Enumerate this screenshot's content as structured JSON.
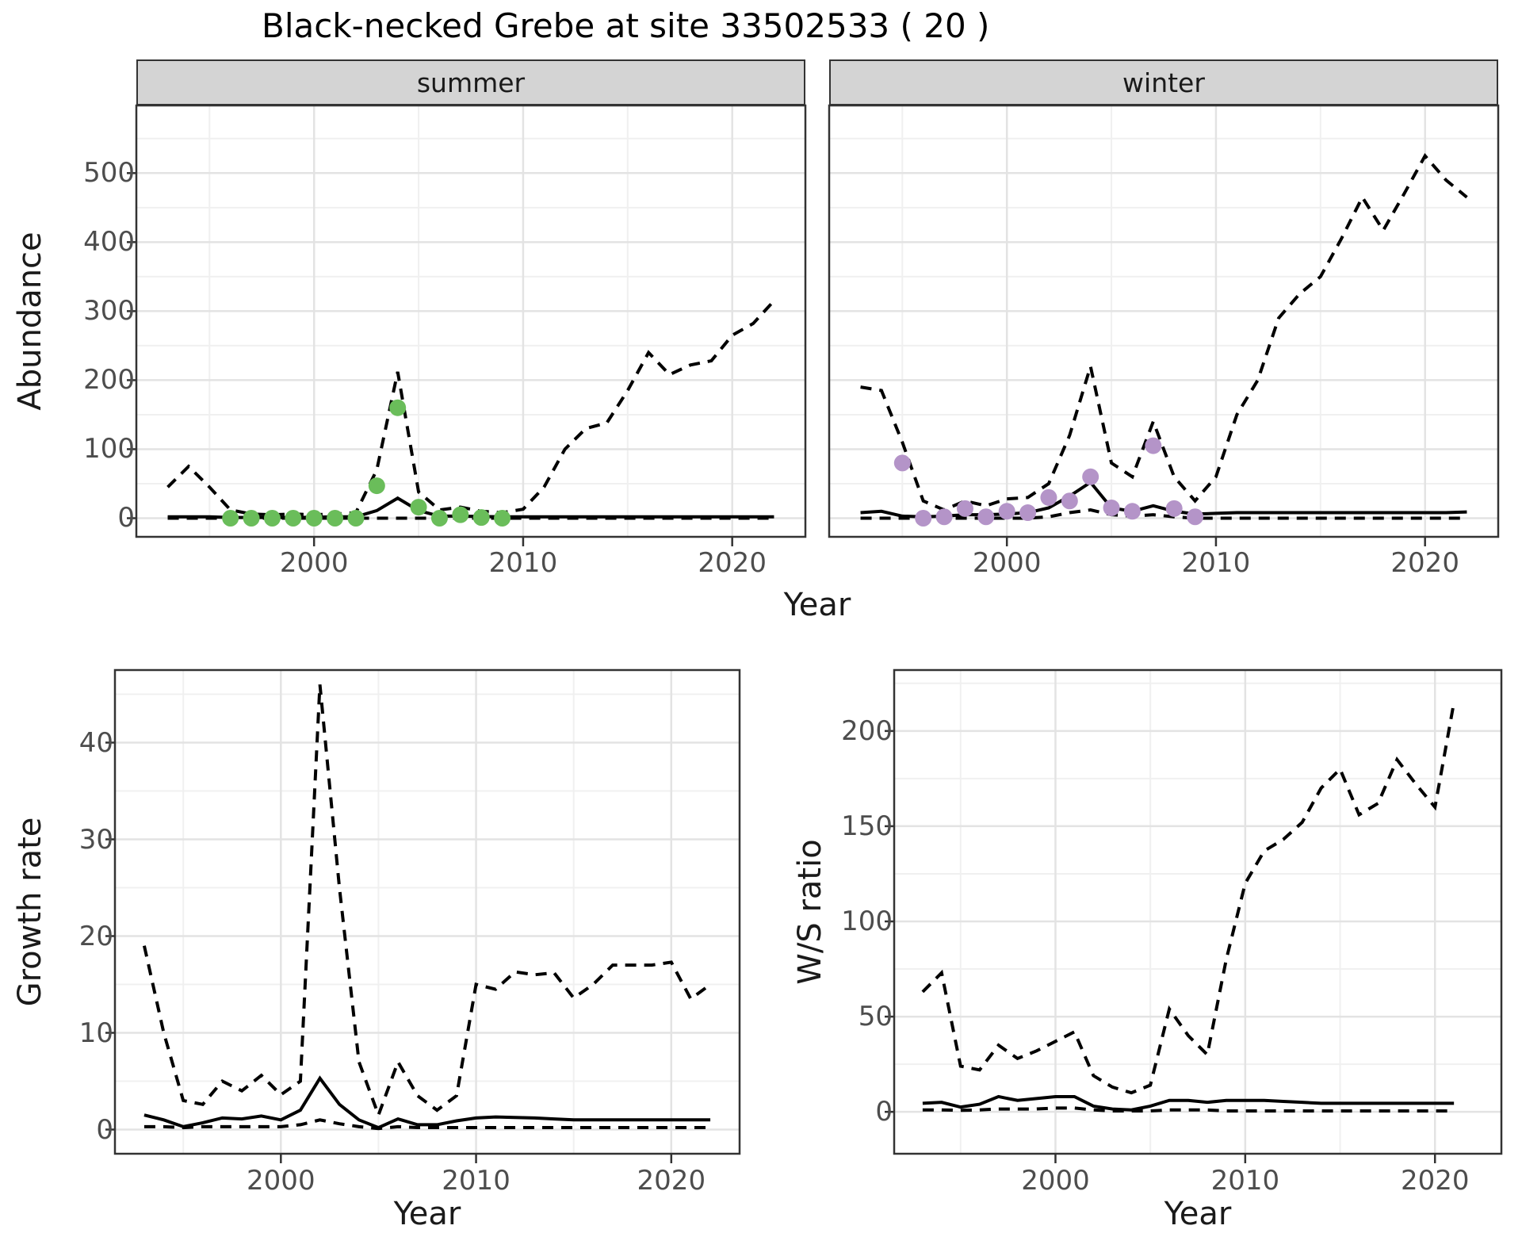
{
  "title": "Black-necked Grebe at site 33502533 ( 20 )",
  "colors": {
    "summer_point": "#6abd5a",
    "winter_point": "#b494c8",
    "line": "#000000",
    "grid_major": "#e3e3e3",
    "grid_minor": "#f0f0f0",
    "strip_bg": "#d4d4d4",
    "panel_border": "#333333",
    "axis_text": "#4d4d4d"
  },
  "chart_data": [
    {
      "id": "abundance-summer",
      "type": "line",
      "facet": "summer",
      "xlabel": "Year",
      "ylabel": "Abundance",
      "xlim": [
        1991.5,
        2023.5
      ],
      "ylim": [
        -27,
        598
      ],
      "x_ticks": [
        2000,
        2010,
        2020
      ],
      "y_ticks": [
        0,
        100,
        200,
        300,
        400,
        500
      ],
      "grid": true,
      "legend": "none",
      "x": [
        1993,
        1994,
        1995,
        1996,
        1997,
        1998,
        1999,
        2000,
        2001,
        2002,
        2003,
        2004,
        2005,
        2006,
        2007,
        2008,
        2009,
        2010,
        2011,
        2012,
        2013,
        2014,
        2015,
        2016,
        2017,
        2018,
        2019,
        2020,
        2021,
        2022
      ],
      "series": [
        {
          "name": "upper_ci",
          "style": "dashed",
          "values": [
            45,
            75,
            45,
            12,
            6,
            5,
            6,
            5,
            6,
            8,
            70,
            212,
            38,
            12,
            16,
            10,
            8,
            13,
            45,
            100,
            130,
            138,
            185,
            240,
            208,
            222,
            228,
            265,
            282,
            315
          ]
        },
        {
          "name": "lower_ci",
          "style": "dashed",
          "values": [
            0,
            0,
            0,
            0,
            0,
            0,
            0,
            0,
            0,
            0,
            0,
            0,
            0,
            0,
            0,
            0,
            0,
            0,
            0,
            0,
            0,
            0,
            0,
            0,
            0,
            0,
            0,
            0,
            0,
            0
          ]
        },
        {
          "name": "fit",
          "style": "solid",
          "values": [
            2,
            2,
            2,
            1,
            1,
            1,
            1,
            1.5,
            2,
            2,
            11,
            29,
            11,
            3,
            3,
            2.5,
            2,
            2,
            2,
            2,
            2,
            2,
            2,
            2,
            2,
            2,
            2,
            2,
            2,
            2
          ]
        },
        {
          "name": "observed",
          "style": "points",
          "color_key": "summer_point",
          "x": [
            1996,
            1997,
            1998,
            1999,
            2000,
            2001,
            2002,
            2003,
            2004,
            2005,
            2006,
            2007,
            2008,
            2009
          ],
          "values": [
            0,
            0,
            0,
            0,
            0,
            0,
            0,
            47,
            160,
            16,
            0,
            5,
            1,
            0
          ]
        }
      ]
    },
    {
      "id": "abundance-winter",
      "type": "line",
      "facet": "winter",
      "xlabel": "Year",
      "ylabel": "Abundance",
      "xlim": [
        1991.5,
        2023.5
      ],
      "ylim": [
        -27,
        598
      ],
      "x_ticks": [
        2000,
        2010,
        2020
      ],
      "y_ticks": [
        0,
        100,
        200,
        300,
        400,
        500
      ],
      "grid": true,
      "legend": "none",
      "x": [
        1993,
        1994,
        1995,
        1996,
        1997,
        1998,
        1999,
        2000,
        2001,
        2002,
        2003,
        2004,
        2005,
        2006,
        2007,
        2008,
        2009,
        2010,
        2011,
        2012,
        2013,
        2014,
        2015,
        2016,
        2017,
        2018,
        2019,
        2020,
        2021,
        2022
      ],
      "series": [
        {
          "name": "upper_ci",
          "style": "dashed",
          "values": [
            190,
            185,
            110,
            25,
            12,
            25,
            18,
            28,
            30,
            50,
            120,
            220,
            80,
            60,
            140,
            60,
            25,
            60,
            150,
            200,
            290,
            325,
            350,
            405,
            465,
            417,
            470,
            525,
            490,
            465
          ]
        },
        {
          "name": "lower_ci",
          "style": "dashed",
          "values": [
            0,
            0,
            0,
            0,
            0,
            0,
            0,
            0,
            0,
            2,
            8,
            12,
            5,
            3,
            5,
            2,
            0,
            0,
            0,
            0,
            0,
            0,
            0,
            0,
            0,
            0,
            0,
            0,
            0,
            0
          ]
        },
        {
          "name": "fit",
          "style": "solid",
          "values": [
            8,
            10,
            3,
            2,
            3,
            5,
            5,
            6,
            8,
            15,
            32,
            52,
            15,
            10,
            18,
            10,
            6,
            7,
            8,
            8,
            8,
            8,
            8,
            8,
            8,
            8,
            8,
            8,
            8,
            9
          ]
        },
        {
          "name": "observed",
          "style": "points",
          "color_key": "winter_point",
          "x": [
            1995,
            1996,
            1997,
            1998,
            1999,
            2000,
            2001,
            2002,
            2003,
            2004,
            2005,
            2006,
            2007,
            2008,
            2009
          ],
          "values": [
            80,
            0,
            2,
            14,
            2,
            10,
            8,
            30,
            25,
            60,
            15,
            10,
            105,
            14,
            2
          ]
        }
      ]
    },
    {
      "id": "growth-rate",
      "type": "line",
      "facet": "",
      "xlabel": "Year",
      "ylabel": "Growth rate",
      "xlim": [
        1991.5,
        2023.5
      ],
      "ylim": [
        -2.5,
        47.5
      ],
      "x_ticks": [
        2000,
        2010,
        2020
      ],
      "y_ticks": [
        0,
        10,
        20,
        30,
        40
      ],
      "grid": true,
      "legend": "none",
      "x": [
        1993,
        1994,
        1995,
        1996,
        1997,
        1998,
        1999,
        2000,
        2001,
        2002,
        2003,
        2004,
        2005,
        2006,
        2007,
        2008,
        2009,
        2010,
        2011,
        2012,
        2013,
        2014,
        2015,
        2016,
        2017,
        2018,
        2019,
        2020,
        2021,
        2022
      ],
      "series": [
        {
          "name": "upper_ci",
          "style": "dashed",
          "values": [
            19,
            10,
            3,
            2.6,
            5,
            4,
            5.6,
            3.6,
            5,
            46,
            25,
            7,
            1.5,
            7,
            3.5,
            2,
            3.5,
            15,
            14.5,
            16.3,
            16,
            16.2,
            13.6,
            15,
            17,
            17,
            17,
            17.3,
            13.5,
            15
          ]
        },
        {
          "name": "lower_ci",
          "style": "dashed",
          "values": [
            0.3,
            0.3,
            0.2,
            0.3,
            0.3,
            0.3,
            0.3,
            0.3,
            0.5,
            1,
            0.6,
            0.3,
            0.1,
            0.3,
            0.2,
            0.2,
            0.2,
            0.2,
            0.2,
            0.2,
            0.2,
            0.2,
            0.2,
            0.2,
            0.2,
            0.2,
            0.2,
            0.2,
            0.2,
            0.2
          ]
        },
        {
          "name": "fit",
          "style": "solid",
          "values": [
            1.5,
            1,
            0.3,
            0.7,
            1.2,
            1.1,
            1.4,
            1,
            2,
            5.3,
            2.6,
            1,
            0.2,
            1.1,
            0.5,
            0.5,
            0.9,
            1.2,
            1.3,
            1.25,
            1.2,
            1.1,
            1,
            1,
            1,
            1,
            1,
            1,
            1,
            1
          ]
        }
      ]
    },
    {
      "id": "ws-ratio",
      "type": "line",
      "facet": "",
      "xlabel": "Year",
      "ylabel": "W/S ratio",
      "xlim": [
        1991.5,
        2023.5
      ],
      "ylim": [
        -22,
        232
      ],
      "x_ticks": [
        2000,
        2010,
        2020
      ],
      "y_ticks": [
        0,
        50,
        100,
        150,
        200
      ],
      "grid": true,
      "legend": "none",
      "x": [
        1993,
        1994,
        1995,
        1996,
        1997,
        1998,
        1999,
        2000,
        2001,
        2002,
        2003,
        2004,
        2005,
        2006,
        2007,
        2008,
        2009,
        2010,
        2011,
        2012,
        2013,
        2014,
        2015,
        2016,
        2017,
        2018,
        2019,
        2020,
        2021
      ],
      "series": [
        {
          "name": "upper_ci",
          "style": "dashed",
          "values": [
            63,
            73,
            24,
            22,
            35,
            28,
            32,
            37,
            42,
            19,
            13,
            10,
            14,
            54,
            40,
            30,
            80,
            120,
            137,
            143,
            152,
            170,
            180,
            156,
            162,
            185,
            172,
            160,
            215
          ]
        },
        {
          "name": "lower_ci",
          "style": "dashed",
          "values": [
            1,
            1,
            0.8,
            1,
            1.5,
            1.5,
            1.5,
            2,
            2,
            1,
            0.5,
            0.5,
            0.5,
            1,
            1,
            1,
            0.5,
            0.5,
            0.5,
            0.5,
            0.5,
            0.5,
            0.5,
            0.5,
            0.5,
            0.5,
            0.5,
            0.5,
            0.5
          ]
        },
        {
          "name": "fit",
          "style": "solid",
          "values": [
            4.5,
            5,
            2.5,
            4,
            8,
            6,
            7,
            8,
            8,
            3,
            1.5,
            1,
            3,
            6,
            6,
            5,
            6,
            6,
            6,
            5.5,
            5,
            4.5,
            4.5,
            4.5,
            4.5,
            4.5,
            4.5,
            4.5,
            4.5
          ]
        }
      ]
    }
  ]
}
